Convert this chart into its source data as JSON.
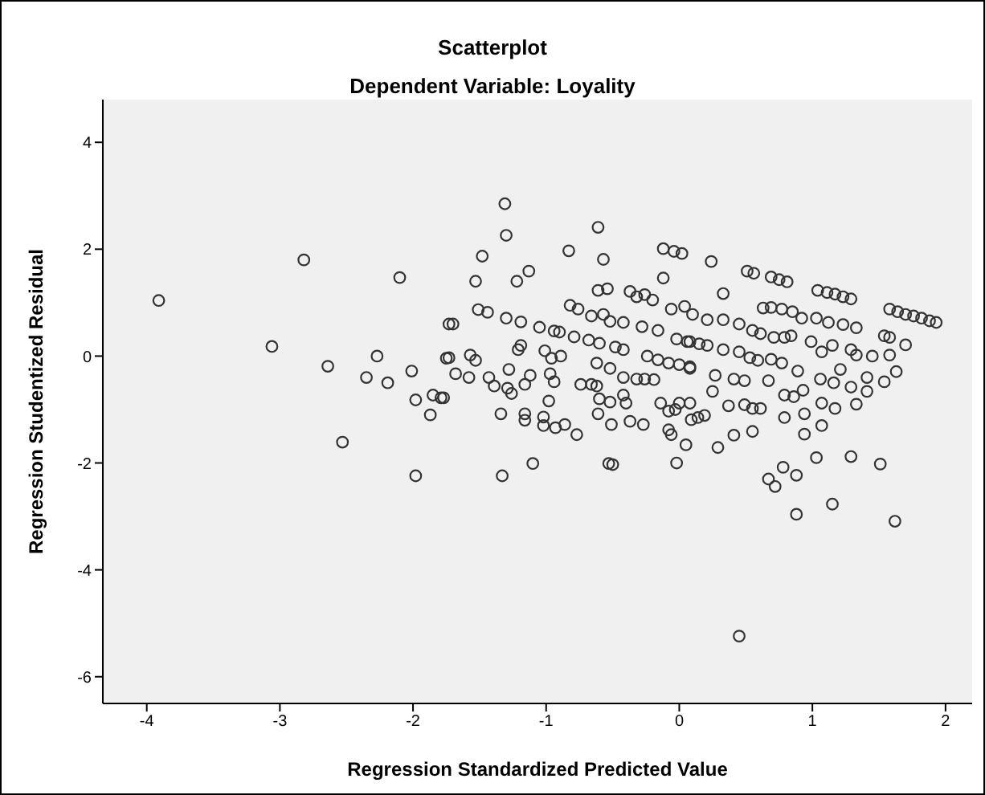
{
  "chart_data": {
    "type": "scatter",
    "title": "Scatterplot",
    "subtitle": "Dependent Variable: Loyality",
    "xlabel": "Regression Standardized Predicted Value",
    "ylabel": "Regression Studentized Residual",
    "marker": "circle",
    "xlim": [
      -4.33,
      2.2
    ],
    "xticks": [
      -4,
      -3,
      -2,
      -1,
      0,
      1,
      2
    ],
    "ylim": [
      -6.5,
      4.8
    ],
    "yticks": [
      -6,
      -4,
      -2,
      0,
      2,
      4
    ],
    "series": [
      {
        "color": "#333333",
        "x": [
          -3.91,
          -2.82,
          -3.06,
          -2.64,
          -2.1,
          -2.27,
          -2.35,
          -2.19,
          -2.01,
          -1.98,
          -1.87,
          -1.85,
          -1.79,
          -1.77,
          -2.53,
          -1.98,
          -1.75,
          -1.73,
          -1.31,
          -1.3,
          -1.48,
          -1.53,
          -1.22,
          -1.13,
          -0.61,
          -0.83,
          -0.57,
          -1.7,
          -1.51,
          -1.44,
          -1.3,
          -1.19,
          -1.05,
          -0.94,
          -0.9,
          -0.79,
          -0.68,
          -0.6,
          -0.48,
          -0.42,
          -1.19,
          -1.21,
          -1.73,
          -1.57,
          -1.53,
          -1.68,
          -1.58,
          -1.43,
          -1.39,
          -1.29,
          -1.26,
          -1.28,
          -1.12,
          -1.16,
          -1.01,
          -0.96,
          -0.89,
          -0.97,
          -0.94,
          -0.98,
          -1.34,
          -1.16,
          -1.16,
          -1.02,
          -1.02,
          -0.93,
          -0.86,
          -0.77,
          -1.1,
          -1.33,
          -0.53,
          -0.5,
          -0.82,
          -0.76,
          -0.61,
          -0.54,
          -0.66,
          -0.57,
          -0.52,
          -0.42,
          -0.62,
          -0.52,
          -0.74,
          -0.66,
          -0.62,
          -0.42,
          -0.32,
          -0.26,
          -0.19,
          -0.6,
          -0.52,
          -0.42,
          -0.4,
          -0.61,
          -0.51,
          -0.37,
          -0.27,
          -0.37,
          -0.32,
          -0.26,
          -0.2,
          -0.12,
          -0.04,
          0.02,
          -0.12,
          -0.28,
          -0.16,
          -0.24,
          -0.16,
          -0.08,
          0.0,
          0.08,
          -0.02,
          0.06,
          0.15,
          -0.06,
          0.04,
          0.1,
          -0.14,
          -0.08,
          -0.03,
          0.0,
          -0.08,
          0.05,
          -0.02,
          -0.06,
          0.09,
          0.14,
          0.19,
          0.24,
          0.51,
          0.56,
          0.69,
          0.75,
          0.81,
          1.04,
          1.11,
          1.17,
          1.23,
          1.29,
          1.58,
          1.64,
          1.7,
          1.76,
          1.82,
          1.88,
          1.93,
          0.33,
          0.63,
          0.69,
          0.77,
          0.85,
          0.92,
          1.03,
          1.12,
          1.23,
          1.33,
          1.54,
          1.58,
          1.7,
          0.21,
          0.33,
          0.45,
          0.55,
          0.61,
          0.71,
          0.79,
          0.84,
          0.99,
          1.07,
          1.15,
          1.29,
          1.33,
          1.45,
          1.58,
          0.08,
          0.21,
          0.33,
          0.45,
          0.53,
          0.59,
          0.69,
          0.77,
          0.89,
          1.21,
          1.41,
          1.63,
          1.06,
          1.16,
          0.08,
          0.27,
          0.41,
          0.49,
          0.67,
          1.29,
          1.41,
          1.54,
          1.33,
          0.79,
          0.86,
          0.93,
          1.07,
          1.17,
          0.25,
          0.37,
          0.49,
          0.55,
          0.61,
          0.08,
          0.79,
          0.94,
          1.07,
          0.94,
          0.41,
          0.29,
          0.55,
          1.03,
          1.29,
          1.51,
          0.78,
          0.88,
          0.67,
          0.72,
          0.88,
          1.15,
          1.62,
          0.45
        ],
        "values": [
          1.04,
          1.8,
          0.18,
          -0.19,
          1.47,
          0.0,
          -0.4,
          -0.5,
          -0.28,
          -0.82,
          -1.1,
          -0.73,
          -0.78,
          -0.78,
          -1.61,
          -2.24,
          -0.04,
          0.6,
          2.85,
          2.26,
          1.87,
          1.4,
          1.4,
          1.59,
          2.41,
          1.97,
          1.81,
          0.6,
          0.87,
          0.82,
          0.71,
          0.64,
          0.54,
          0.47,
          0.45,
          0.36,
          0.3,
          0.24,
          0.17,
          0.12,
          0.2,
          0.12,
          -0.03,
          0.02,
          -0.08,
          -0.33,
          -0.4,
          -0.4,
          -0.56,
          -0.6,
          -0.7,
          -0.25,
          -0.36,
          -0.53,
          0.1,
          -0.04,
          0.0,
          -0.33,
          -0.48,
          -0.84,
          -1.08,
          -1.08,
          -1.2,
          -1.14,
          -1.3,
          -1.34,
          -1.28,
          -1.47,
          -2.01,
          -2.24,
          -2.01,
          -2.03,
          0.95,
          0.88,
          1.23,
          1.26,
          0.75,
          0.78,
          0.65,
          0.63,
          -0.13,
          -0.23,
          -0.53,
          -0.53,
          -0.56,
          -0.4,
          -0.43,
          -0.43,
          -0.44,
          -0.8,
          -0.86,
          -0.73,
          -0.88,
          -1.08,
          -1.28,
          -1.22,
          -1.28,
          1.21,
          1.11,
          1.15,
          1.05,
          2.01,
          1.96,
          1.92,
          1.46,
          0.55,
          0.48,
          0.0,
          -0.07,
          -0.13,
          -0.16,
          -0.2,
          0.32,
          0.27,
          0.23,
          0.88,
          0.93,
          0.78,
          -0.88,
          -1.03,
          -1.0,
          -0.88,
          -1.38,
          -1.66,
          -2.0,
          -1.47,
          -1.19,
          -1.15,
          -1.11,
          1.77,
          1.59,
          1.55,
          1.48,
          1.43,
          1.39,
          1.23,
          1.19,
          1.16,
          1.11,
          1.07,
          0.88,
          0.83,
          0.78,
          0.75,
          0.71,
          0.66,
          0.63,
          1.17,
          0.9,
          0.91,
          0.88,
          0.83,
          0.71,
          0.71,
          0.63,
          0.59,
          0.53,
          0.38,
          0.35,
          0.21,
          0.68,
          0.68,
          0.6,
          0.48,
          0.42,
          0.35,
          0.35,
          0.38,
          0.27,
          0.08,
          0.2,
          0.12,
          0.02,
          0.0,
          0.02,
          0.27,
          0.2,
          0.12,
          0.08,
          -0.03,
          -0.08,
          -0.06,
          -0.13,
          -0.28,
          -0.25,
          -0.4,
          -0.29,
          -0.43,
          -0.5,
          -0.23,
          -0.36,
          -0.43,
          -0.46,
          -0.46,
          -0.58,
          -0.66,
          -0.48,
          -0.9,
          -0.73,
          -0.76,
          -0.64,
          -0.88,
          -0.98,
          -0.66,
          -0.93,
          -0.91,
          -0.98,
          -0.98,
          -0.88,
          -1.15,
          -1.08,
          -1.3,
          -1.46,
          -1.48,
          -1.71,
          -1.41,
          -1.9,
          -1.88,
          -2.02,
          -2.08,
          -2.23,
          -2.3,
          -2.44,
          -2.96,
          -2.77,
          -3.09,
          -5.24
        ]
      }
    ]
  }
}
